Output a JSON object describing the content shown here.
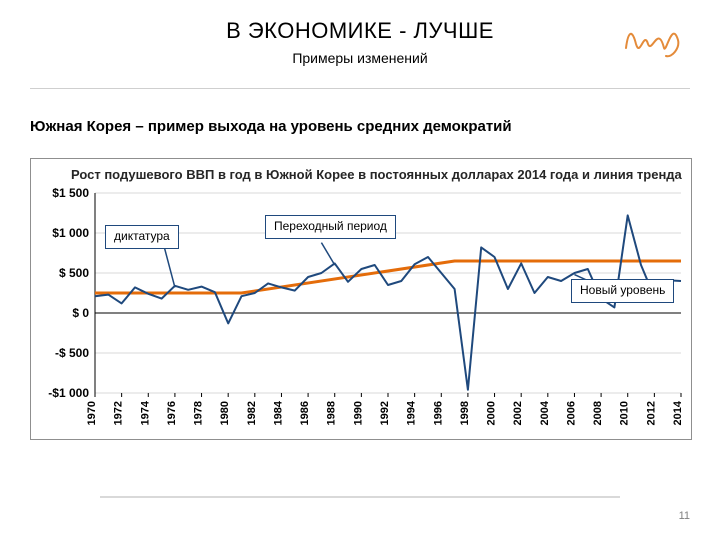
{
  "header": {
    "title": "В ЭКОНОМИКЕ - ЛУЧШЕ",
    "subtitle": "Примеры изменений"
  },
  "section_heading": "Южная Корея – пример выхода на уровень средних демократий",
  "page_number": "11",
  "callouts": {
    "dictatorship": "диктатура",
    "transition": "Переходный\nпериод",
    "newlevel": "Новый\nуровень"
  },
  "chart": {
    "type": "line",
    "title": "Рост подушевого ВВП в год в Южной Корее в постоянных долларах 2014 года и линия тренда",
    "background_color": "#ffffff",
    "grid_color": "#d9d9d9",
    "axis_color": "#000000",
    "axis_font_size": 12,
    "x_label_font_size": 11,
    "y": {
      "min": -1000,
      "max": 1500,
      "tick_step": 500,
      "tick_labels": [
        "-$1 000",
        "-$ 500",
        "$ 0",
        "$ 500",
        "$1 000",
        "$1 500"
      ]
    },
    "x": {
      "labels": [
        "1970",
        "1972",
        "1974",
        "1976",
        "1978",
        "1980",
        "1982",
        "1984",
        "1986",
        "1988",
        "1990",
        "1992",
        "1994",
        "1996",
        "1998",
        "2000",
        "2002",
        "2004",
        "2006",
        "2008",
        "2010",
        "2012",
        "2014"
      ]
    },
    "series": [
      {
        "name": "trend",
        "color": "#e46c0a",
        "width": 3,
        "x": [
          "1970",
          "1980",
          "1981",
          "1997",
          "1998",
          "2014"
        ],
        "y": [
          250,
          250,
          250,
          650,
          650,
          650
        ]
      },
      {
        "name": "gdp_growth",
        "color": "#1f497d",
        "width": 2,
        "x": [
          "1970",
          "1971",
          "1972",
          "1973",
          "1974",
          "1975",
          "1976",
          "1977",
          "1978",
          "1979",
          "1980",
          "1981",
          "1982",
          "1983",
          "1984",
          "1985",
          "1986",
          "1987",
          "1988",
          "1989",
          "1990",
          "1991",
          "1992",
          "1993",
          "1994",
          "1995",
          "1996",
          "1997",
          "1998",
          "1999",
          "2000",
          "2001",
          "2002",
          "2003",
          "2004",
          "2005",
          "2006",
          "2007",
          "2008",
          "2009",
          "2010",
          "2011",
          "2012",
          "2013",
          "2014"
        ],
        "y": [
          210,
          230,
          120,
          320,
          240,
          180,
          340,
          290,
          330,
          260,
          -130,
          210,
          250,
          370,
          320,
          280,
          450,
          500,
          620,
          390,
          550,
          600,
          350,
          400,
          610,
          700,
          500,
          300,
          -960,
          820,
          700,
          300,
          620,
          250,
          450,
          400,
          500,
          550,
          180,
          70,
          1220,
          600,
          200,
          410,
          400
        ]
      }
    ]
  }
}
